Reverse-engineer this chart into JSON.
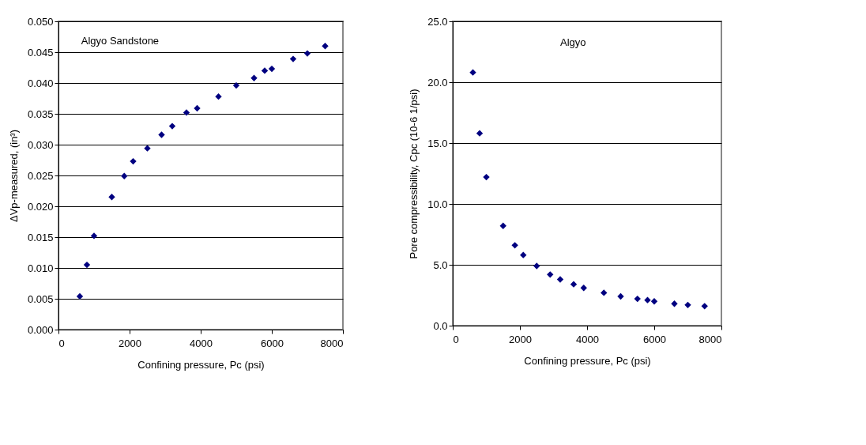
{
  "chart_data": [
    {
      "type": "scatter",
      "xlabel": "Confining pressure, Pc (psi)",
      "ylabel": "ΔVp-measured, (in³)",
      "annotations": [
        "Algyo Sandstone"
      ],
      "marker": "diamond",
      "grid": "y",
      "x": [
        600,
        800,
        1000,
        1500,
        1850,
        2100,
        2500,
        2900,
        3200,
        3600,
        3900,
        4500,
        5000,
        5500,
        5800,
        6000,
        6600,
        7000,
        7500
      ],
      "series": [
        {
          "color": "#000080",
          "values": [
            0.0054,
            0.0105,
            0.0152,
            0.0215,
            0.0249,
            0.0273,
            0.0294,
            0.0316,
            0.033,
            0.0352,
            0.0359,
            0.0378,
            0.0396,
            0.0408,
            0.042,
            0.0423,
            0.0439,
            0.0448,
            0.046
          ]
        }
      ],
      "xlim": [
        0,
        8000
      ],
      "xticks": [
        0,
        2000,
        4000,
        6000,
        8000
      ],
      "ylim": [
        0,
        0.05
      ],
      "yticks": [
        {
          "value": 0,
          "label": "0.000"
        },
        {
          "value": 0.005,
          "label": "0.005"
        },
        {
          "value": 0.01,
          "label": "0.010"
        },
        {
          "value": 0.015,
          "label": "0.015"
        },
        {
          "value": 0.02,
          "label": "0.020"
        },
        {
          "value": 0.025,
          "label": "0.025"
        },
        {
          "value": 0.03,
          "label": "0.030"
        },
        {
          "value": 0.035,
          "label": "0.035"
        },
        {
          "value": 0.04,
          "label": "0.040"
        },
        {
          "value": 0.045,
          "label": "0.045"
        },
        {
          "value": 0.05,
          "label": "0.050"
        }
      ]
    },
    {
      "type": "scatter",
      "xlabel": "Confining pressure, Pc (psi)",
      "ylabel": "Pore compressibility, Cpc  (10-6 1/psi)",
      "annotations": [
        "Algyo"
      ],
      "marker": "diamond",
      "grid": "y",
      "x": [
        600,
        800,
        1000,
        1500,
        1850,
        2100,
        2500,
        2900,
        3200,
        3600,
        3900,
        4500,
        5000,
        5500,
        5800,
        6000,
        6600,
        7000,
        7500
      ],
      "series": [
        {
          "color": "#000080",
          "values": [
            20.8,
            15.8,
            12.2,
            8.2,
            6.6,
            5.8,
            4.9,
            4.2,
            3.8,
            3.4,
            3.1,
            2.7,
            2.4,
            2.2,
            2.1,
            2.0,
            1.8,
            1.7,
            1.6
          ]
        }
      ],
      "xlim": [
        0,
        8000
      ],
      "xticks": [
        0,
        2000,
        4000,
        6000,
        8000
      ],
      "ylim": [
        0,
        25
      ],
      "yticks": [
        {
          "value": 0,
          "label": "0.0"
        },
        {
          "value": 5,
          "label": "5.0"
        },
        {
          "value": 10,
          "label": "10.0"
        },
        {
          "value": 15,
          "label": "15.0"
        },
        {
          "value": 20,
          "label": "20.0"
        },
        {
          "value": 25,
          "label": "25.0"
        }
      ]
    }
  ]
}
